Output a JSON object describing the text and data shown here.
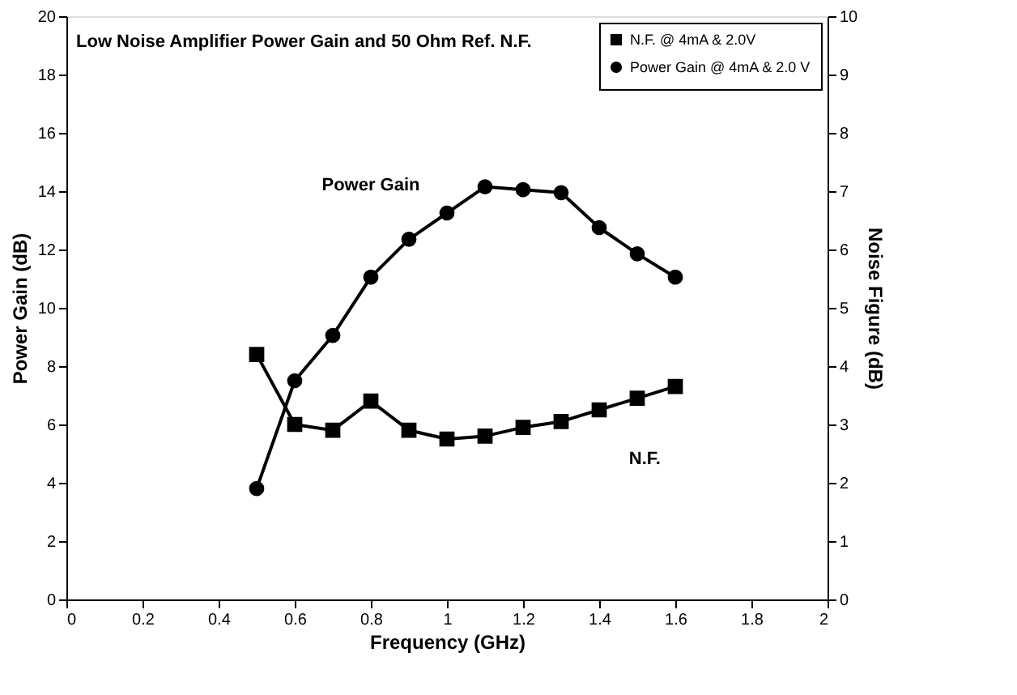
{
  "chart_data": {
    "type": "line",
    "title": "Low Noise Amplifier Power Gain and 50 Ohm Ref. N.F.",
    "xlabel": "Frequency (GHz)",
    "ylabel": "Power Gain (dB)",
    "y2label": "Noise Figure (dB)",
    "x": [
      0.5,
      0.6,
      0.7,
      0.8,
      0.9,
      1.0,
      1.1,
      1.2,
      1.3,
      1.4,
      1.5,
      1.6
    ],
    "series": [
      {
        "name": "N.F. @ 4mA & 2.0V",
        "color": "#000000",
        "axis": "y2",
        "marker": "square",
        "values": [
          4.2,
          3.0,
          2.9,
          3.4,
          2.9,
          2.75,
          2.8,
          2.95,
          3.05,
          3.25,
          3.45,
          3.65
        ]
      },
      {
        "name": "Power Gain @ 4mA & 2.0 V",
        "color": "#000000",
        "axis": "y",
        "marker": "circle",
        "values": [
          3.8,
          7.5,
          9.05,
          11.05,
          12.35,
          13.25,
          14.15,
          14.05,
          13.95,
          12.75,
          11.85,
          11.05
        ]
      }
    ],
    "xlim": [
      0,
      2
    ],
    "xticks": [
      0,
      0.2,
      0.4,
      0.6,
      0.8,
      1,
      1.2,
      1.4,
      1.6,
      1.8,
      2
    ],
    "ylim": [
      0,
      20
    ],
    "yticks": [
      0,
      2,
      4,
      6,
      8,
      10,
      12,
      14,
      16,
      18,
      20
    ],
    "y2lim": [
      0,
      10
    ],
    "y2ticks": [
      0,
      1,
      2,
      3,
      4,
      5,
      6,
      7,
      8,
      9,
      10
    ],
    "annotations": [
      "Power Gain",
      "N.F."
    ],
    "legend": "top right",
    "grid": false,
    "line_style": "solid"
  }
}
